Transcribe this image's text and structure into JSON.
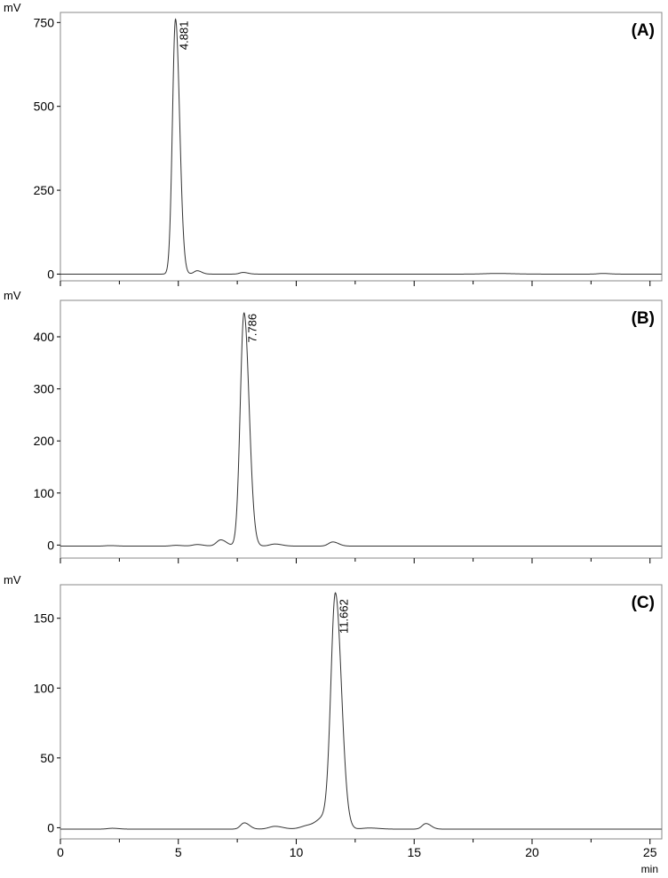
{
  "chart_data": [
    {
      "type": "line",
      "panel_label": "(A)",
      "ylabel": "mV",
      "xlim": [
        0,
        25.5
      ],
      "ylim": [
        -20,
        780
      ],
      "yticks": [
        0,
        250,
        500,
        750
      ],
      "xticks": [
        0,
        5,
        10,
        15,
        20,
        25
      ],
      "peaks": [
        {
          "t": 4.881,
          "h": 760,
          "w": 0.13,
          "label": "4.881"
        },
        {
          "t": 5.8,
          "h": 10,
          "w": 0.14
        },
        {
          "t": 7.75,
          "h": 5,
          "w": 0.15
        },
        {
          "t": 18.5,
          "h": 2,
          "w": 0.5
        },
        {
          "t": 23.0,
          "h": 2,
          "w": 0.2
        }
      ],
      "baseline": 0
    },
    {
      "type": "line",
      "panel_label": "(B)",
      "ylabel": "mV",
      "xlim": [
        0,
        25.5
      ],
      "ylim": [
        -25,
        470
      ],
      "yticks": [
        0,
        100,
        200,
        300,
        400
      ],
      "xticks": [
        0,
        5,
        10,
        15,
        20,
        25
      ],
      "peaks": [
        {
          "t": 7.786,
          "h": 448,
          "w": 0.16,
          "label": "7.786"
        },
        {
          "t": 6.8,
          "h": 12,
          "w": 0.18
        },
        {
          "t": 5.8,
          "h": 3,
          "w": 0.2
        },
        {
          "t": 4.9,
          "h": 1.5,
          "w": 0.2
        },
        {
          "t": 2.1,
          "h": 1,
          "w": 0.2
        },
        {
          "t": 9.1,
          "h": 4,
          "w": 0.22
        },
        {
          "t": 11.55,
          "h": 8,
          "w": 0.18
        }
      ],
      "baseline": -2
    },
    {
      "type": "line",
      "panel_label": "(C)",
      "ylabel": "mV",
      "xlim": [
        0,
        25.5
      ],
      "ylim": [
        -8,
        174
      ],
      "yticks": [
        0,
        50,
        100,
        150
      ],
      "xticks": [
        0,
        5,
        10,
        15,
        20,
        25
      ],
      "xtick_labels_visible": true,
      "xunit": "min",
      "peaks": [
        {
          "t": 11.662,
          "h": 165,
          "w": 0.19,
          "label": "11.662"
        },
        {
          "t": 11.2,
          "h": 8,
          "w": 0.3
        },
        {
          "t": 7.8,
          "h": 4.5,
          "w": 0.16
        },
        {
          "t": 9.1,
          "h": 2,
          "w": 0.25
        },
        {
          "t": 10.5,
          "h": 2.5,
          "w": 0.3
        },
        {
          "t": 15.5,
          "h": 4,
          "w": 0.16
        },
        {
          "t": 2.2,
          "h": 0.6,
          "w": 0.2
        },
        {
          "t": 13.1,
          "h": 0.8,
          "w": 0.3
        }
      ],
      "baseline": -1
    }
  ]
}
